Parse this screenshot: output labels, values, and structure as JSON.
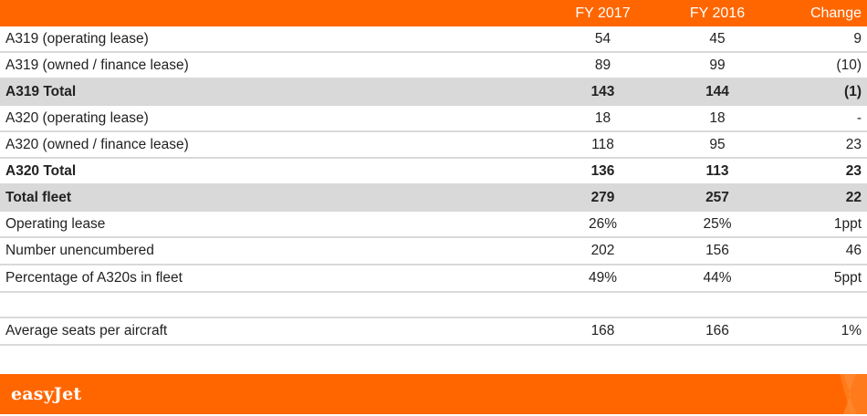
{
  "table": {
    "headers": [
      "FY 2017",
      "FY 2016",
      "Change"
    ],
    "rows": [
      {
        "label": "A319 (operating lease)",
        "fy2017": "54",
        "fy2016": "45",
        "change": "9"
      },
      {
        "label": "A319 (owned / finance lease)",
        "fy2017": "89",
        "fy2016": "99",
        "change": "(10)"
      },
      {
        "label": "A319 Total",
        "fy2017": "143",
        "fy2016": "144",
        "change": "(1)"
      },
      {
        "label": "A320 (operating lease)",
        "fy2017": "18",
        "fy2016": "18",
        "change": "-"
      },
      {
        "label": "A320 (owned / finance lease)",
        "fy2017": "118",
        "fy2016": "95",
        "change": "23"
      },
      {
        "label": "A320 Total",
        "fy2017": "136",
        "fy2016": "113",
        "change": "23"
      },
      {
        "label": "Total fleet",
        "fy2017": "279",
        "fy2016": "257",
        "change": "22"
      },
      {
        "label": "Operating lease",
        "fy2017": "26%",
        "fy2016": "25%",
        "change": "1ppt"
      },
      {
        "label": "Number unencumbered",
        "fy2017": "202",
        "fy2016": "156",
        "change": "46"
      },
      {
        "label": "Percentage of A320s in fleet",
        "fy2017": "49%",
        "fy2016": "44%",
        "change": "5ppt"
      },
      {
        "label": "Average seats per aircraft",
        "fy2017": "168",
        "fy2016": "166",
        "change": "1%"
      }
    ]
  },
  "footer": {
    "brand": "easyJet"
  },
  "colors": {
    "accent": "#ff6600",
    "total_row": "#d9d9d9"
  }
}
